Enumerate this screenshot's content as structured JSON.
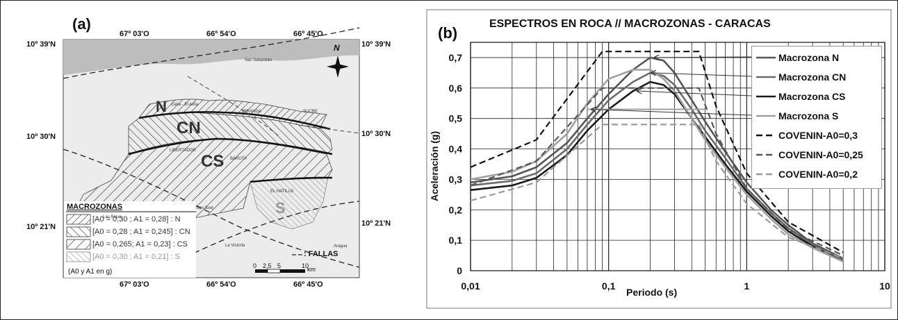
{
  "panel_a": {
    "label": "(a)",
    "top_lon": [
      "67º 03'O",
      "66º 54'O",
      "66º 45'O"
    ],
    "bottom_lon": [
      "67º 03'O",
      "66º 54'O",
      "66º 45'O"
    ],
    "lat_left": [
      "10º 39'N",
      "10º 30'N",
      "10º 21'N"
    ],
    "lat_right": [
      "10º 39'N",
      "10º 30'N",
      "10º 21'N"
    ],
    "north_letter": "N",
    "zones": [
      "N",
      "CN",
      "CS",
      "S"
    ],
    "place_names": [
      "San Sebastián",
      "Catia - El Avila",
      "MIRANDA",
      "SUCRE",
      "LIBERTADOR",
      "BARUTA",
      "EL HATILLO",
      "San José",
      "Las Rojas",
      "La Victoria",
      "Aragua"
    ],
    "legend_title": "MACROZONAS",
    "legend_items": [
      {
        "text": "[A0 = 0,30   ;   A1 = 0,28] : N",
        "color": "#333333"
      },
      {
        "text": "[A0 = 0,28   ;   A1 = 0,245] : CN",
        "color": "#333333"
      },
      {
        "text": "[A0 = 0,265;   A1 = 0,23] : CS",
        "color": "#333333"
      },
      {
        "text": "[A0 = 0,30   ;   A1 = 0,21] : S",
        "color": "#9a9a9a"
      }
    ],
    "legend_note": "(A0 y A1 en g)",
    "fallas_label": ": FALLAS",
    "scale_ticks": [
      "0",
      "2,5",
      "5",
      "10"
    ],
    "scale_unit": "km"
  },
  "panel_b": {
    "label": "(b)"
  },
  "chart_data": {
    "type": "line",
    "title": "ESPECTROS EN ROCA  //  MACROZONAS - CARACAS",
    "xlabel": "Periodo (s)",
    "ylabel": "Aceleración (g)",
    "x_scale": "log",
    "xlim": [
      0.01,
      10
    ],
    "ylim": [
      0,
      0.75
    ],
    "x_ticks": [
      "0,01",
      "0,1",
      "1",
      "10"
    ],
    "y_ticks": [
      "0",
      "0,1",
      "0,2",
      "0,3",
      "0,4",
      "0,5",
      "0,6",
      "0,7"
    ],
    "grid": true,
    "legend_position": "top-right",
    "series": [
      {
        "name": "Macrozona N",
        "color": "#555555",
        "dash": "",
        "points": [
          [
            0.01,
            0.29
          ],
          [
            0.02,
            0.31
          ],
          [
            0.03,
            0.34
          ],
          [
            0.05,
            0.42
          ],
          [
            0.07,
            0.5
          ],
          [
            0.1,
            0.58
          ],
          [
            0.15,
            0.66
          ],
          [
            0.2,
            0.7
          ],
          [
            0.25,
            0.69
          ],
          [
            0.3,
            0.65
          ],
          [
            0.4,
            0.56
          ],
          [
            0.5,
            0.49
          ],
          [
            0.7,
            0.39
          ],
          [
            1,
            0.29
          ],
          [
            1.5,
            0.2
          ],
          [
            2,
            0.15
          ],
          [
            3,
            0.09
          ],
          [
            5,
            0.04
          ]
        ]
      },
      {
        "name": "Macrozona CN",
        "color": "#6a6a6a",
        "dash": "",
        "points": [
          [
            0.01,
            0.28
          ],
          [
            0.02,
            0.295
          ],
          [
            0.03,
            0.32
          ],
          [
            0.05,
            0.4
          ],
          [
            0.07,
            0.48
          ],
          [
            0.1,
            0.56
          ],
          [
            0.15,
            0.62
          ],
          [
            0.2,
            0.65
          ],
          [
            0.25,
            0.64
          ],
          [
            0.3,
            0.61
          ],
          [
            0.4,
            0.53
          ],
          [
            0.5,
            0.46
          ],
          [
            0.7,
            0.37
          ],
          [
            1,
            0.27
          ],
          [
            1.5,
            0.19
          ],
          [
            2,
            0.14
          ],
          [
            3,
            0.085
          ],
          [
            5,
            0.035
          ]
        ]
      },
      {
        "name": "Macrozona CS",
        "color": "#1a1a1a",
        "dash": "",
        "points": [
          [
            0.01,
            0.265
          ],
          [
            0.02,
            0.28
          ],
          [
            0.03,
            0.305
          ],
          [
            0.05,
            0.38
          ],
          [
            0.07,
            0.46
          ],
          [
            0.1,
            0.53
          ],
          [
            0.15,
            0.59
          ],
          [
            0.2,
            0.62
          ],
          [
            0.25,
            0.61
          ],
          [
            0.3,
            0.58
          ],
          [
            0.4,
            0.5
          ],
          [
            0.5,
            0.44
          ],
          [
            0.7,
            0.35
          ],
          [
            1,
            0.26
          ],
          [
            1.5,
            0.18
          ],
          [
            2,
            0.13
          ],
          [
            3,
            0.08
          ],
          [
            5,
            0.03
          ]
        ]
      },
      {
        "name": "Macrozona S",
        "color": "#a0a0a0",
        "dash": "",
        "points": [
          [
            0.01,
            0.3
          ],
          [
            0.02,
            0.325
          ],
          [
            0.03,
            0.36
          ],
          [
            0.05,
            0.45
          ],
          [
            0.07,
            0.55
          ],
          [
            0.1,
            0.63
          ],
          [
            0.15,
            0.66
          ],
          [
            0.2,
            0.66
          ],
          [
            0.25,
            0.63
          ],
          [
            0.3,
            0.59
          ],
          [
            0.4,
            0.5
          ],
          [
            0.5,
            0.43
          ],
          [
            0.7,
            0.34
          ],
          [
            1,
            0.25
          ],
          [
            1.5,
            0.17
          ],
          [
            2,
            0.12
          ],
          [
            3,
            0.075
          ],
          [
            5,
            0.03
          ]
        ]
      },
      {
        "name": "COVENIN-A0=0,3",
        "color": "#111111",
        "dash": "9,5",
        "points": [
          [
            0.01,
            0.34
          ],
          [
            0.03,
            0.43
          ],
          [
            0.09,
            0.72
          ],
          [
            0.45,
            0.72
          ],
          [
            0.6,
            0.54
          ],
          [
            1,
            0.32
          ],
          [
            2,
            0.16
          ],
          [
            5,
            0.06
          ]
        ]
      },
      {
        "name": "COVENIN-A0=0,25",
        "color": "#555555",
        "dash": "9,5",
        "points": [
          [
            0.01,
            0.28
          ],
          [
            0.03,
            0.36
          ],
          [
            0.09,
            0.6
          ],
          [
            0.45,
            0.6
          ],
          [
            0.6,
            0.45
          ],
          [
            1,
            0.27
          ],
          [
            2,
            0.135
          ],
          [
            5,
            0.05
          ]
        ]
      },
      {
        "name": "COVENIN-A0=0,2",
        "color": "#999999",
        "dash": "9,5",
        "points": [
          [
            0.01,
            0.23
          ],
          [
            0.03,
            0.29
          ],
          [
            0.09,
            0.48
          ],
          [
            0.45,
            0.48
          ],
          [
            0.6,
            0.36
          ],
          [
            1,
            0.22
          ],
          [
            2,
            0.11
          ],
          [
            5,
            0.04
          ]
        ]
      }
    ],
    "flat_branches": [
      {
        "series": "Macrozona S",
        "y": 0.53,
        "x_from": 0.07,
        "x_to": 0.5,
        "color": "#a0a0a0"
      }
    ]
  }
}
